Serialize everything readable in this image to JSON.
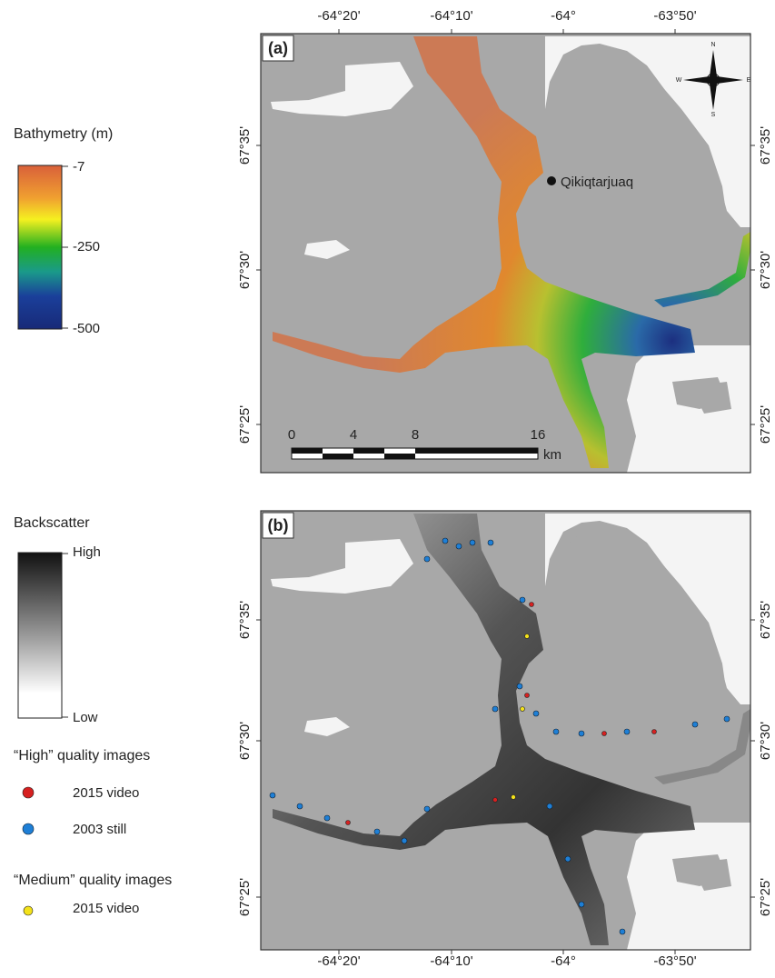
{
  "panels": [
    {
      "label": "(a)"
    },
    {
      "label": "(b)"
    }
  ],
  "longitude_labels": [
    "-64°20'",
    "-64°10'",
    "-64°",
    "-63°50'"
  ],
  "latitude_labels": [
    "67°35'",
    "67°30'",
    "67°25'"
  ],
  "bathymetry_legend": {
    "title": "Bathymetry (m)",
    "labels": [
      "-7",
      "-250",
      "-500"
    ]
  },
  "backscatter_legend": {
    "title": "Backscatter",
    "labels": [
      "High",
      "Low"
    ]
  },
  "image_legend": {
    "high_title": "“High” quality images",
    "high_items": [
      "2015 video",
      "2003 still"
    ],
    "medium_title": "“Medium” quality images",
    "medium_items": [
      "2015 video"
    ]
  },
  "place_label": "Qikiqtarjuaq",
  "scale_bar": {
    "labels": [
      "0",
      "4",
      "8",
      "16"
    ],
    "unit": "km"
  },
  "compass": {
    "n": "N",
    "s": "S",
    "e": "E",
    "w": "W"
  }
}
